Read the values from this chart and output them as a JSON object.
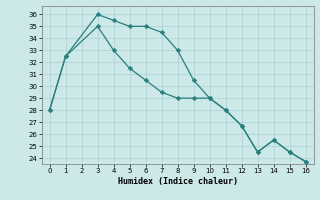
{
  "xlabel": "Humidex (Indice chaleur)",
  "background_color": "#cce8e8",
  "grid_color": "#aad0d0",
  "line_color": "#2a7f7f",
  "xlim": [
    -0.5,
    16.5
  ],
  "ylim": [
    23.5,
    36.7
  ],
  "xticks": [
    0,
    1,
    2,
    3,
    4,
    5,
    6,
    7,
    8,
    9,
    10,
    11,
    12,
    13,
    14,
    15,
    16
  ],
  "yticks": [
    24,
    25,
    26,
    27,
    28,
    29,
    30,
    31,
    32,
    33,
    34,
    35,
    36
  ],
  "line1_x": [
    0,
    1,
    3,
    4,
    5,
    6,
    7,
    8,
    9,
    10,
    11,
    12,
    13,
    14,
    15,
    16
  ],
  "line1_y": [
    28.0,
    32.5,
    36.0,
    35.5,
    35.0,
    35.0,
    34.5,
    33.0,
    30.5,
    29.0,
    28.0,
    26.7,
    24.5,
    25.5,
    24.5,
    23.7
  ],
  "line2_x": [
    0,
    1,
    3,
    4,
    5,
    6,
    7,
    8,
    9,
    10,
    11,
    12,
    13,
    14,
    15,
    16
  ],
  "line2_y": [
    28.0,
    32.5,
    35.0,
    33.0,
    31.5,
    30.5,
    29.5,
    29.0,
    29.0,
    29.0,
    28.0,
    26.7,
    24.5,
    25.5,
    24.5,
    23.7
  ]
}
